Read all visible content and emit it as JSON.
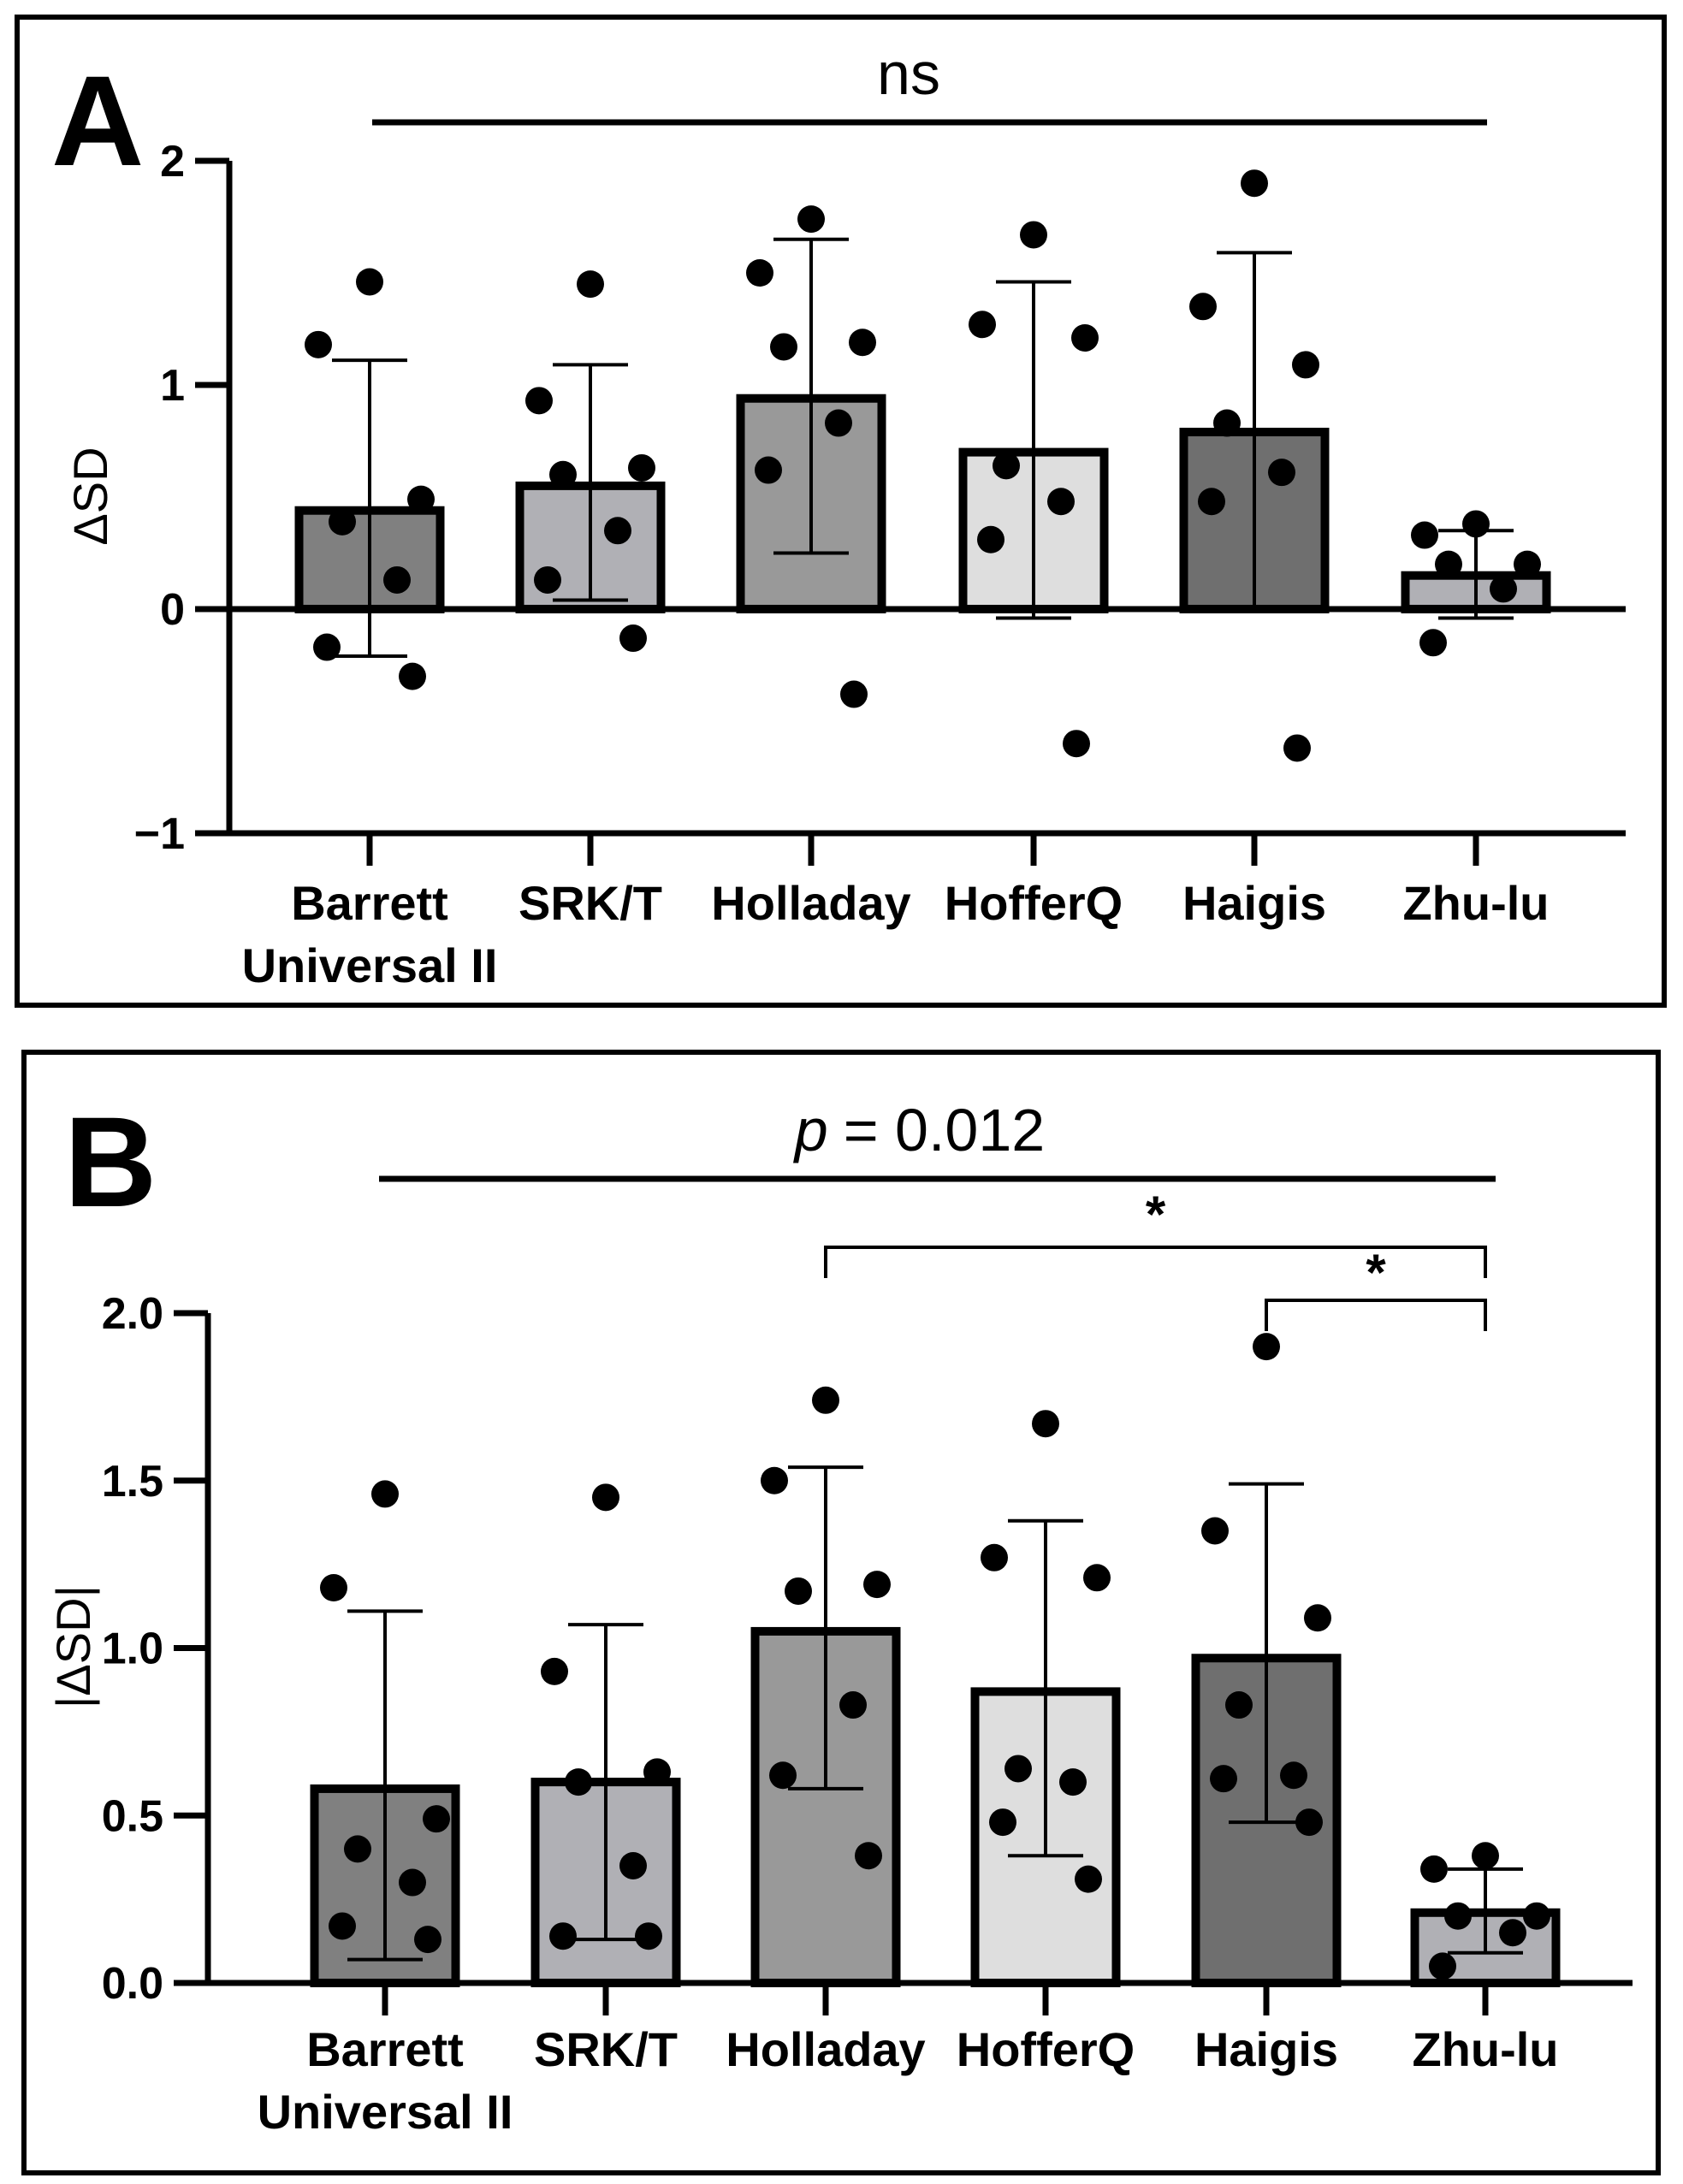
{
  "chart_data": [
    {
      "type": "bar",
      "panel_label": "A",
      "categories": [
        "Barrett Universal II",
        "SRK/T",
        "Holladay",
        "HofferQ",
        "Haigis",
        "Zhu-lu"
      ],
      "category_lines": [
        [
          "Barrett",
          "Universal II"
        ],
        [
          "SRK/T"
        ],
        [
          "Holladay"
        ],
        [
          "HofferQ"
        ],
        [
          "Haigis"
        ],
        [
          "Zhu-lu"
        ]
      ],
      "values": [
        0.44,
        0.55,
        0.94,
        0.7,
        0.79,
        0.15
      ],
      "error_low": [
        -0.21,
        0.04,
        0.25,
        -0.04,
        0.0,
        -0.04
      ],
      "error_high": [
        1.11,
        1.09,
        1.65,
        1.46,
        1.59,
        0.35
      ],
      "points": [
        [
          1.46,
          1.18,
          0.49,
          0.39,
          0.13,
          -0.17,
          -0.3
        ],
        [
          1.45,
          0.93,
          0.63,
          0.6,
          0.35,
          0.13,
          -0.13
        ],
        [
          1.74,
          1.5,
          1.19,
          1.17,
          0.83,
          0.62,
          -0.38
        ],
        [
          1.67,
          1.27,
          1.21,
          0.64,
          0.48,
          0.31,
          -0.6
        ],
        [
          1.9,
          1.35,
          1.09,
          0.83,
          0.61,
          0.48,
          -0.62
        ],
        [
          0.38,
          0.33,
          0.2,
          0.2,
          0.09,
          -0.15
        ]
      ],
      "bar_colors": [
        "#808080",
        "#b0b0b5",
        "#999999",
        "#dedede",
        "#6f6f6f",
        "#b0b0b5"
      ],
      "ylabel": "ΔSD",
      "ylim": [
        -1,
        2
      ],
      "yticks": [
        -1,
        0,
        1,
        2
      ],
      "ytick_labels": [
        "−1",
        "0",
        "1",
        "2"
      ],
      "significance": "ns"
    },
    {
      "type": "bar",
      "panel_label": "B",
      "categories": [
        "Barrett Universal II",
        "SRK/T",
        "Holladay",
        "HofferQ",
        "Haigis",
        "Zhu-lu"
      ],
      "category_lines": [
        [
          "Barrett",
          "Universal II"
        ],
        [
          "SRK/T"
        ],
        [
          "Holladay"
        ],
        [
          "HofferQ"
        ],
        [
          "Haigis"
        ],
        [
          "Zhu-lu"
        ]
      ],
      "values": [
        0.58,
        0.6,
        1.05,
        0.87,
        0.97,
        0.21
      ],
      "error_low": [
        0.07,
        0.13,
        0.58,
        0.38,
        0.48,
        0.09
      ],
      "error_high": [
        1.11,
        1.07,
        1.54,
        1.38,
        1.49,
        0.34
      ],
      "points": [
        [
          1.46,
          1.18,
          0.49,
          0.4,
          0.3,
          0.17,
          0.13
        ],
        [
          1.45,
          0.93,
          0.63,
          0.6,
          0.35,
          0.14,
          0.14
        ],
        [
          1.74,
          1.5,
          1.19,
          1.17,
          0.83,
          0.62,
          0.38
        ],
        [
          1.67,
          1.27,
          1.21,
          0.64,
          0.6,
          0.48,
          0.31
        ],
        [
          1.9,
          1.35,
          1.09,
          0.83,
          0.62,
          0.61,
          0.48
        ],
        [
          0.38,
          0.34,
          0.2,
          0.2,
          0.15,
          0.05
        ]
      ],
      "bar_colors": [
        "#808080",
        "#b0b0b5",
        "#999999",
        "#dedede",
        "#6f6f6f",
        "#b0b0b5"
      ],
      "ylabel": "|ΔSD|",
      "ylim": [
        0,
        2
      ],
      "yticks": [
        0,
        0.5,
        1,
        1.5,
        2
      ],
      "ytick_labels": [
        "0.0",
        "0.5",
        "1.0",
        "1.5",
        "2.0"
      ],
      "significance_prefix": "p",
      "significance_value": "= 0.012",
      "comparisons": [
        {
          "from": "Holladay",
          "to": "Zhu-lu",
          "label": "*"
        },
        {
          "from": "Haigis",
          "to": "Zhu-lu",
          "label": "*"
        }
      ]
    }
  ]
}
